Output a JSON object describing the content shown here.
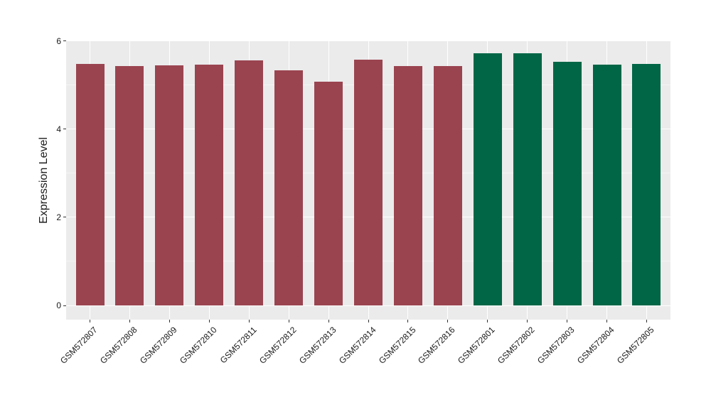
{
  "figure": {
    "background": "#ffffff",
    "panel_background": "#ebebeb",
    "grid_major_color": "#ffffff",
    "grid_minor_color": "#f5f5f5",
    "tick_color": "#333333",
    "text_color": "#1a1a1a"
  },
  "chart_data": {
    "type": "bar",
    "title": "",
    "xlabel": "",
    "ylabel": "Expression Level",
    "categories": [
      "GSM572807",
      "GSM572808",
      "GSM572809",
      "GSM572810",
      "GSM572811",
      "GSM572812",
      "GSM572813",
      "GSM572814",
      "GSM572815",
      "GSM572816",
      "GSM572801",
      "GSM572802",
      "GSM572803",
      "GSM572804",
      "GSM572805"
    ],
    "values": [
      5.48,
      5.43,
      5.45,
      5.46,
      5.56,
      5.34,
      5.07,
      5.57,
      5.43,
      5.43,
      5.72,
      5.72,
      5.53,
      5.47,
      5.48
    ],
    "bar_colors": [
      "#9A4450",
      "#9A4450",
      "#9A4450",
      "#9A4450",
      "#9A4450",
      "#9A4450",
      "#9A4450",
      "#9A4450",
      "#9A4450",
      "#9A4450",
      "#006646",
      "#006646",
      "#006646",
      "#006646",
      "#006646"
    ],
    "yticks": [
      0,
      2,
      4,
      6
    ],
    "yticks_minor": [
      1,
      3,
      5
    ],
    "ylim": [
      0,
      6
    ],
    "grid": true,
    "legend": false,
    "x_label_angle": 45
  }
}
